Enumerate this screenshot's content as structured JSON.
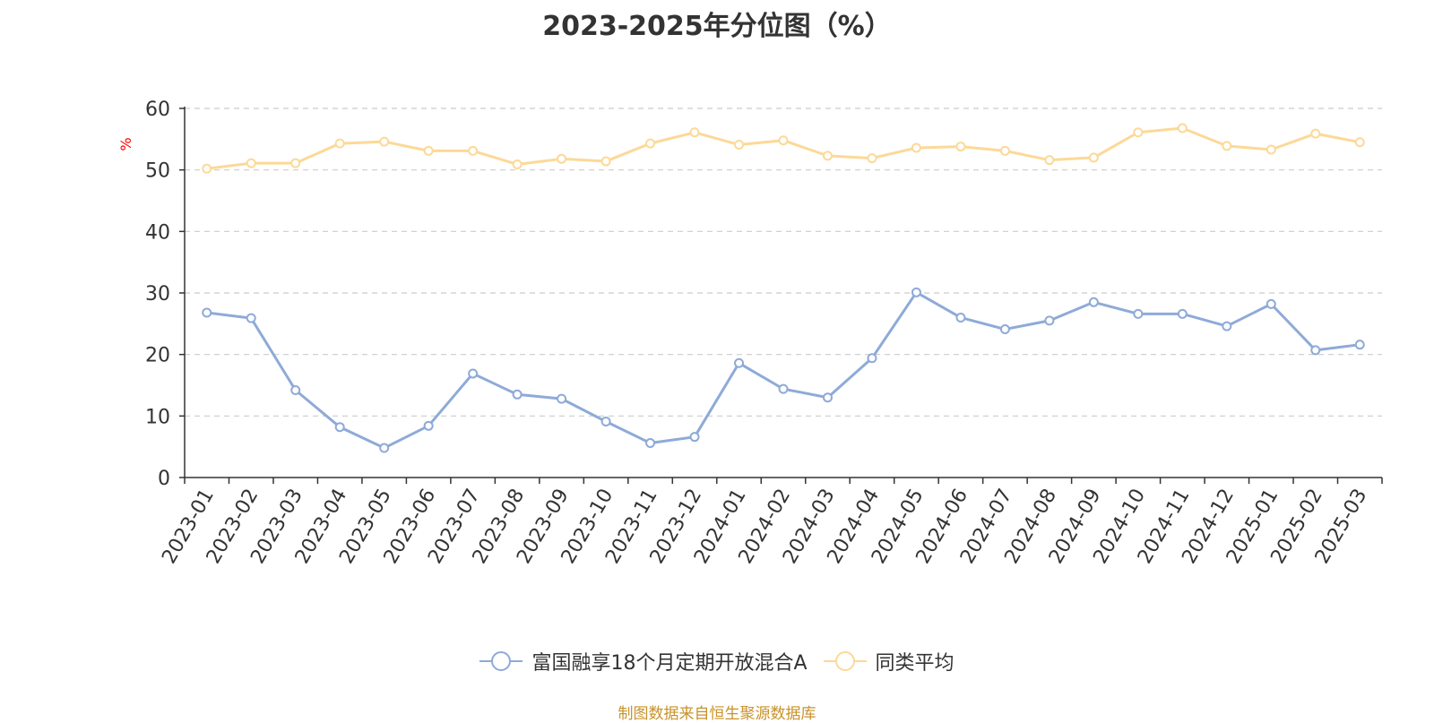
{
  "chart_data": {
    "type": "line",
    "title": "2023-2025年分位图（%）",
    "ylabel": "%",
    "ylim": [
      0,
      60
    ],
    "yticks": [
      0,
      10,
      20,
      30,
      40,
      50,
      60
    ],
    "grid": true,
    "legend_position": "bottom",
    "categories": [
      "2023-01",
      "2023-02",
      "2023-03",
      "2023-04",
      "2023-05",
      "2023-06",
      "2023-07",
      "2023-08",
      "2023-09",
      "2023-10",
      "2023-11",
      "2023-12",
      "2024-01",
      "2024-02",
      "2024-03",
      "2024-04",
      "2024-05",
      "2024-06",
      "2024-07",
      "2024-08",
      "2024-09",
      "2024-10",
      "2024-11",
      "2024-12",
      "2025-01",
      "2025-02",
      "2025-03"
    ],
    "series": [
      {
        "name": "富国融享18个月定期开放混合A",
        "color": "#8eaad8",
        "values": [
          26.8,
          25.9,
          14.2,
          8.2,
          4.8,
          8.4,
          16.9,
          13.5,
          12.8,
          9.1,
          5.6,
          6.6,
          18.6,
          14.4,
          13.0,
          19.4,
          30.1,
          26.0,
          24.1,
          25.5,
          28.5,
          26.6,
          26.6,
          24.6,
          28.2,
          20.7,
          21.6
        ]
      },
      {
        "name": "同类平均",
        "color": "#fcd998",
        "values": [
          50.2,
          51.1,
          51.1,
          54.3,
          54.6,
          53.1,
          53.1,
          50.9,
          51.8,
          51.4,
          54.3,
          56.1,
          54.1,
          54.8,
          52.3,
          51.9,
          53.6,
          53.8,
          53.1,
          51.6,
          52.0,
          56.1,
          56.8,
          53.9,
          53.3,
          55.9,
          54.5
        ]
      }
    ]
  },
  "footer": {
    "source": "制图数据来自恒生聚源数据库"
  }
}
